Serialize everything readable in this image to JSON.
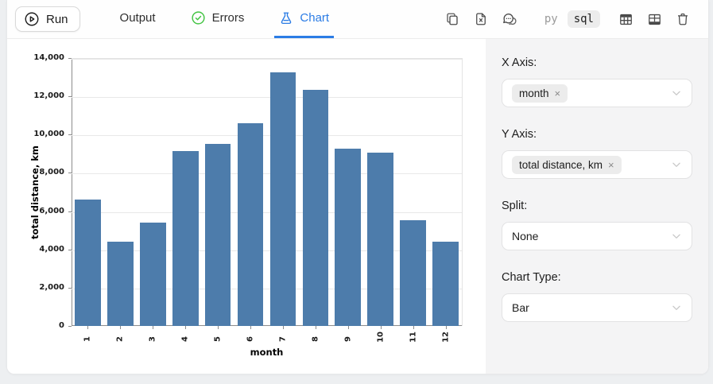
{
  "toolbar": {
    "run_label": "Run",
    "tabs": [
      {
        "label": "Output"
      },
      {
        "label": "Errors",
        "icon": "check-circle"
      },
      {
        "label": "Chart",
        "icon": "flask",
        "active": true
      }
    ],
    "action_icons": [
      "copy-icon",
      "file-export-icon",
      "comments-icon"
    ],
    "lang_toggle": {
      "py": "py",
      "sql": "sql",
      "selected": "sql"
    },
    "table_icons": [
      "table-header-icon",
      "table-grid-icon",
      "trash-icon"
    ]
  },
  "panel": {
    "x_axis": {
      "label": "X Axis:",
      "tag": "month",
      "remove": "×"
    },
    "y_axis": {
      "label": "Y Axis:",
      "tag": "total distance, km",
      "remove": "×"
    },
    "split": {
      "label": "Split:",
      "value": "None"
    },
    "chart_type": {
      "label": "Chart Type:",
      "value": "Bar"
    }
  },
  "chart_data": {
    "type": "bar",
    "categories": [
      "1",
      "2",
      "3",
      "4",
      "5",
      "6",
      "7",
      "8",
      "9",
      "10",
      "11",
      "12"
    ],
    "values": [
      6590,
      4400,
      5400,
      9140,
      9530,
      10590,
      13270,
      12340,
      9280,
      9070,
      5540,
      4400
    ],
    "title": "",
    "xlabel": "month",
    "ylabel": "total distance, km",
    "ylim": [
      0,
      14000
    ],
    "ytick_step": 2000,
    "grid": true,
    "legend": "none",
    "bar_color": "#4d7cab"
  },
  "colors": {
    "accent_blue": "#2b7ce5",
    "success_green": "#41c341",
    "bar_blue": "#4d7cab",
    "panel_gray": "#f4f4f5"
  }
}
